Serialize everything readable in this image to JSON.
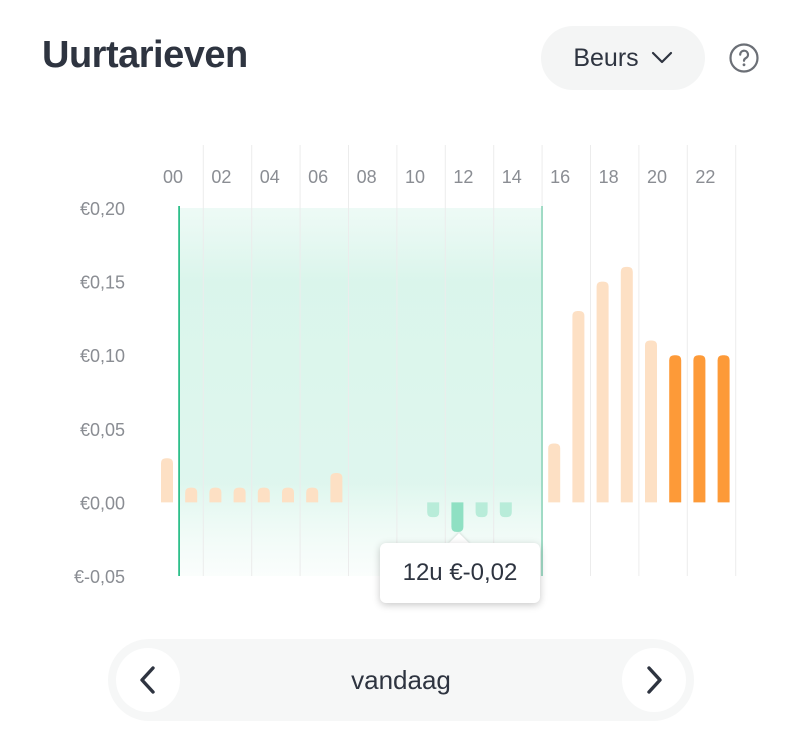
{
  "header": {
    "title": "Uurtarieven",
    "dropdown_label": "Beurs"
  },
  "icons": {
    "dropdown": "chevron-down-icon",
    "help": "question-circle-icon",
    "prev": "chevron-left-icon",
    "next": "chevron-right-icon"
  },
  "colors": {
    "bar_light": "#fde0c4",
    "bar_dark": "#fd9a38",
    "bar_negative": "#b8ecd9",
    "bar_selected": "#8fe0c3",
    "highlight": "#2fbf8a"
  },
  "tooltip": {
    "text": "12u €-0,02"
  },
  "nav": {
    "label": "vandaag"
  },
  "chart_data": {
    "type": "bar",
    "x_tick_labels": [
      "00",
      "02",
      "04",
      "06",
      "08",
      "10",
      "12",
      "14",
      "16",
      "18",
      "20",
      "22"
    ],
    "y_tick_labels": [
      "€0,20",
      "€0,15",
      "€0,10",
      "€0,05",
      "€0,00",
      "€-0,05"
    ],
    "y_ticks": [
      0.2,
      0.15,
      0.1,
      0.05,
      0.0,
      -0.05
    ],
    "ylim": [
      -0.05,
      0.2
    ],
    "hours": [
      0,
      1,
      2,
      3,
      4,
      5,
      6,
      7,
      8,
      9,
      10,
      11,
      12,
      13,
      14,
      15,
      16,
      17,
      18,
      19,
      20,
      21,
      22,
      23
    ],
    "values": [
      0.03,
      0.01,
      0.01,
      0.01,
      0.01,
      0.01,
      0.01,
      0.02,
      0.0,
      0.0,
      0.0,
      -0.01,
      -0.02,
      -0.01,
      -0.01,
      0.0,
      0.04,
      0.13,
      0.15,
      0.16,
      0.11,
      0.1,
      0.1,
      0.1
    ],
    "highlighted_range": [
      0.5,
      15.5
    ],
    "selected_hour": 12,
    "current_hours": [
      21,
      22,
      23
    ]
  }
}
